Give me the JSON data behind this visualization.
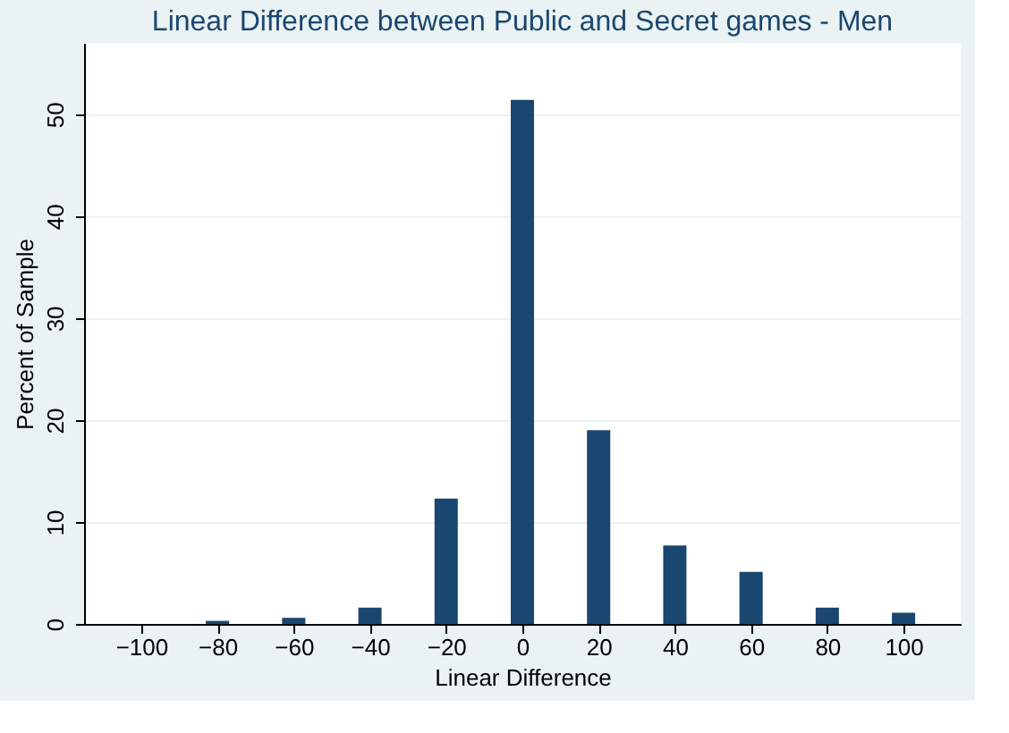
{
  "chart_data": {
    "type": "bar",
    "title": "Linear Difference between Public and Secret games - Men",
    "xlabel": "Linear Difference",
    "ylabel": "Percent of Sample",
    "x": [
      -100,
      -80,
      -60,
      -40,
      -20,
      0,
      20,
      40,
      60,
      80,
      100
    ],
    "values": [
      0,
      0.3,
      0.6,
      1.6,
      12.3,
      51.4,
      19,
      7.7,
      5.1,
      1.6,
      1.1
    ],
    "color": "#1a476f",
    "xlim": [
      -115,
      115
    ],
    "xticks": [
      -100,
      -80,
      -60,
      -40,
      -20,
      0,
      20,
      40,
      60,
      80,
      100
    ],
    "ylim": [
      0,
      57
    ],
    "yticks": [
      0,
      10,
      20,
      30,
      40,
      50
    ],
    "grid": "y"
  }
}
